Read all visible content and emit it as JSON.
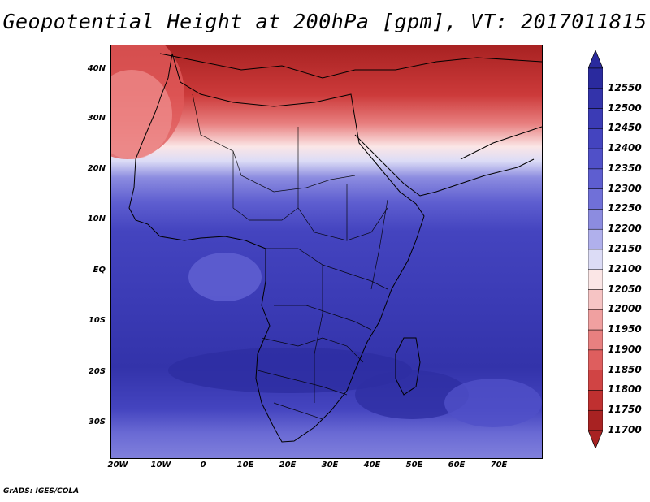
{
  "title": "Geopotential Height at 200hPa [gpm], VT: 2017011815",
  "credit": "GrADS: IGES/COLA",
  "lat_ticks": [
    "40N",
    "30N",
    "20N",
    "10N",
    "EQ",
    "10S",
    "20S",
    "30S"
  ],
  "lon_ticks": [
    "20W",
    "10W",
    "0",
    "10E",
    "20E",
    "30E",
    "40E",
    "50E",
    "60E",
    "70E"
  ],
  "colorbar": {
    "levels": [
      "12550",
      "12500",
      "12450",
      "12400",
      "12350",
      "12300",
      "12250",
      "12200",
      "12150",
      "12100",
      "12050",
      "12000",
      "11950",
      "11900",
      "11850",
      "11800",
      "11750",
      "11700"
    ],
    "colors": [
      "#2a2a9e",
      "#3333aa",
      "#3b3bb5",
      "#4444bf",
      "#5050c8",
      "#5e5ed0",
      "#7070d8",
      "#8c8ce0",
      "#b0b0ec",
      "#dcdcf6",
      "#fbe6e6",
      "#f6c4c4",
      "#f0a0a0",
      "#e88080",
      "#de5e5e",
      "#d04444",
      "#bf3030",
      "#a82222"
    ]
  },
  "map": {
    "lat_range": [
      -37,
      45
    ],
    "lon_range": [
      -22,
      80
    ]
  }
}
